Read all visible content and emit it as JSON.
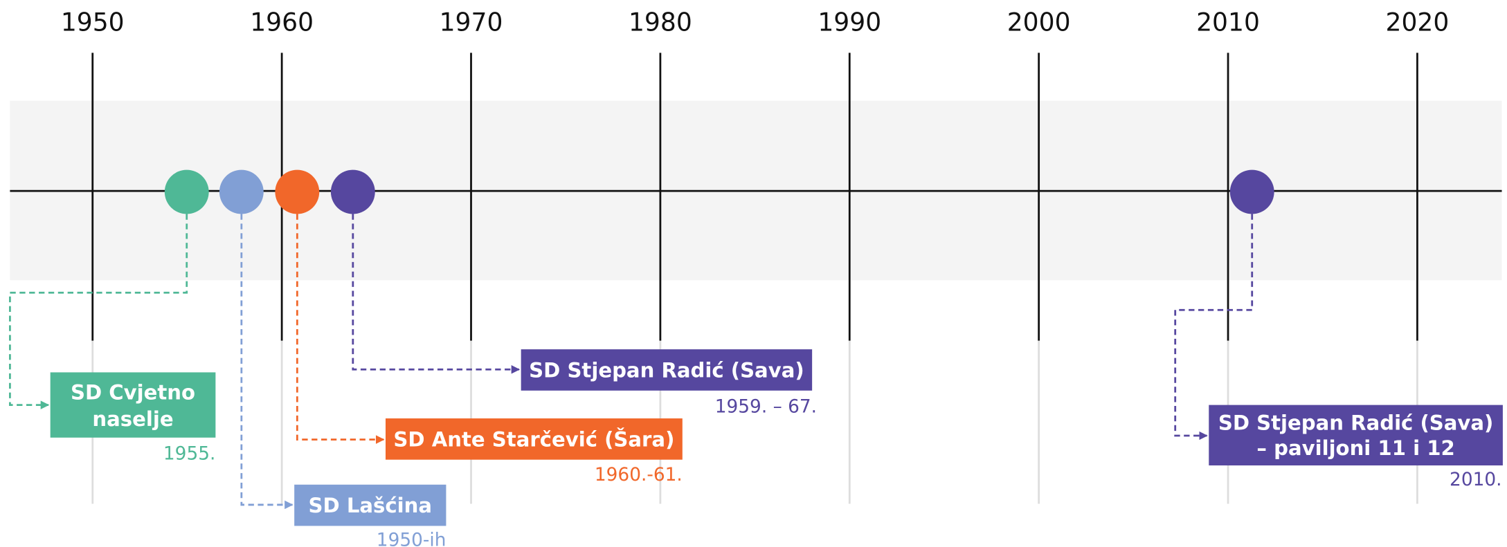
{
  "timeline": {
    "ticks": [
      "1950",
      "1960",
      "1970",
      "1980",
      "1990",
      "2000",
      "2010",
      "2020"
    ],
    "events": [
      {
        "title_lines": [
          "SD Cvjetno",
          "naselje"
        ],
        "date": "1955."
      },
      {
        "title_lines": [
          "SD Lašćina"
        ],
        "date": "1950-ih"
      },
      {
        "title_lines": [
          "SD Ante Starčević (Šara)"
        ],
        "date": "1960.-61."
      },
      {
        "title_lines": [
          "SD Stjepan Radić (Sava)"
        ],
        "date": "1959. – 67."
      },
      {
        "title_lines": [
          "SD Stjepan Radić (Sava)",
          "– paviljoni 11 i 12"
        ],
        "date": "2010."
      }
    ]
  }
}
